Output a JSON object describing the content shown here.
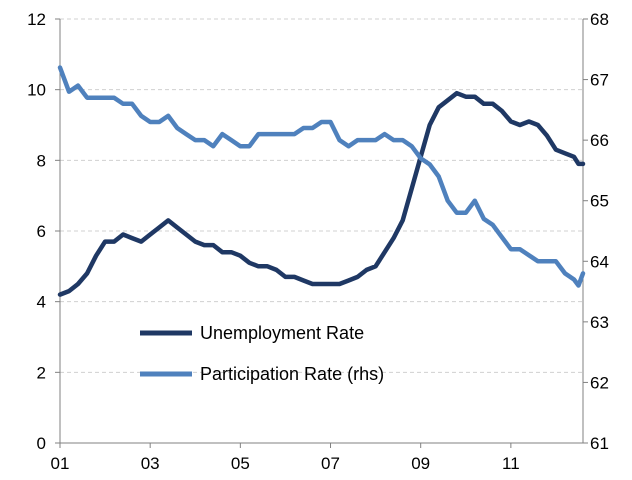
{
  "chart_data": {
    "type": "line",
    "x_tick_labels": [
      "01",
      "03",
      "05",
      "07",
      "09",
      "11"
    ],
    "x_tick_years": [
      2001,
      2003,
      2005,
      2007,
      2009,
      2011
    ],
    "xlim": [
      2001.0,
      2012.6
    ],
    "y_left": {
      "ylim": [
        0,
        12
      ],
      "ticks": [
        0,
        2,
        4,
        6,
        8,
        10,
        12
      ]
    },
    "y_right": {
      "ylim": [
        61,
        68
      ],
      "ticks": [
        61,
        62,
        63,
        64,
        65,
        66,
        67,
        68
      ]
    },
    "grid": {
      "horizontal": true,
      "dashed": true
    },
    "legend": {
      "placement": "lower-center"
    },
    "series": [
      {
        "name": "Unemployment Rate",
        "axis": "left",
        "color": "#1f3864",
        "points": [
          [
            2001.0,
            4.2
          ],
          [
            2001.2,
            4.3
          ],
          [
            2001.4,
            4.5
          ],
          [
            2001.6,
            4.8
          ],
          [
            2001.8,
            5.3
          ],
          [
            2002.0,
            5.7
          ],
          [
            2002.2,
            5.7
          ],
          [
            2002.4,
            5.9
          ],
          [
            2002.6,
            5.8
          ],
          [
            2002.8,
            5.7
          ],
          [
            2003.0,
            5.9
          ],
          [
            2003.2,
            6.1
          ],
          [
            2003.4,
            6.3
          ],
          [
            2003.6,
            6.1
          ],
          [
            2003.8,
            5.9
          ],
          [
            2004.0,
            5.7
          ],
          [
            2004.2,
            5.6
          ],
          [
            2004.4,
            5.6
          ],
          [
            2004.6,
            5.4
          ],
          [
            2004.8,
            5.4
          ],
          [
            2005.0,
            5.3
          ],
          [
            2005.2,
            5.1
          ],
          [
            2005.4,
            5.0
          ],
          [
            2005.6,
            5.0
          ],
          [
            2005.8,
            4.9
          ],
          [
            2006.0,
            4.7
          ],
          [
            2006.2,
            4.7
          ],
          [
            2006.4,
            4.6
          ],
          [
            2006.6,
            4.5
          ],
          [
            2006.8,
            4.5
          ],
          [
            2007.0,
            4.5
          ],
          [
            2007.2,
            4.5
          ],
          [
            2007.4,
            4.6
          ],
          [
            2007.6,
            4.7
          ],
          [
            2007.8,
            4.9
          ],
          [
            2008.0,
            5.0
          ],
          [
            2008.2,
            5.4
          ],
          [
            2008.4,
            5.8
          ],
          [
            2008.6,
            6.3
          ],
          [
            2008.8,
            7.2
          ],
          [
            2009.0,
            8.1
          ],
          [
            2009.2,
            9.0
          ],
          [
            2009.4,
            9.5
          ],
          [
            2009.6,
            9.7
          ],
          [
            2009.8,
            9.9
          ],
          [
            2010.0,
            9.8
          ],
          [
            2010.2,
            9.8
          ],
          [
            2010.4,
            9.6
          ],
          [
            2010.6,
            9.6
          ],
          [
            2010.8,
            9.4
          ],
          [
            2011.0,
            9.1
          ],
          [
            2011.2,
            9.0
          ],
          [
            2011.4,
            9.1
          ],
          [
            2011.6,
            9.0
          ],
          [
            2011.8,
            8.7
          ],
          [
            2012.0,
            8.3
          ],
          [
            2012.2,
            8.2
          ],
          [
            2012.4,
            8.1
          ],
          [
            2012.5,
            7.9
          ],
          [
            2012.6,
            7.9
          ]
        ]
      },
      {
        "name": "Participation Rate (rhs)",
        "axis": "right",
        "color": "#4f81bd",
        "points": [
          [
            2001.0,
            67.2
          ],
          [
            2001.2,
            66.8
          ],
          [
            2001.4,
            66.9
          ],
          [
            2001.6,
            66.7
          ],
          [
            2001.8,
            66.7
          ],
          [
            2002.0,
            66.7
          ],
          [
            2002.2,
            66.7
          ],
          [
            2002.4,
            66.6
          ],
          [
            2002.6,
            66.6
          ],
          [
            2002.8,
            66.4
          ],
          [
            2003.0,
            66.3
          ],
          [
            2003.2,
            66.3
          ],
          [
            2003.4,
            66.4
          ],
          [
            2003.6,
            66.2
          ],
          [
            2003.8,
            66.1
          ],
          [
            2004.0,
            66.0
          ],
          [
            2004.2,
            66.0
          ],
          [
            2004.4,
            65.9
          ],
          [
            2004.6,
            66.1
          ],
          [
            2004.8,
            66.0
          ],
          [
            2005.0,
            65.9
          ],
          [
            2005.2,
            65.9
          ],
          [
            2005.4,
            66.1
          ],
          [
            2005.6,
            66.1
          ],
          [
            2005.8,
            66.1
          ],
          [
            2006.0,
            66.1
          ],
          [
            2006.2,
            66.1
          ],
          [
            2006.4,
            66.2
          ],
          [
            2006.6,
            66.2
          ],
          [
            2006.8,
            66.3
          ],
          [
            2007.0,
            66.3
          ],
          [
            2007.2,
            66.0
          ],
          [
            2007.4,
            65.9
          ],
          [
            2007.6,
            66.0
          ],
          [
            2007.8,
            66.0
          ],
          [
            2008.0,
            66.0
          ],
          [
            2008.2,
            66.1
          ],
          [
            2008.4,
            66.0
          ],
          [
            2008.6,
            66.0
          ],
          [
            2008.8,
            65.9
          ],
          [
            2009.0,
            65.7
          ],
          [
            2009.2,
            65.6
          ],
          [
            2009.4,
            65.4
          ],
          [
            2009.6,
            65.0
          ],
          [
            2009.8,
            64.8
          ],
          [
            2010.0,
            64.8
          ],
          [
            2010.2,
            65.0
          ],
          [
            2010.4,
            64.7
          ],
          [
            2010.6,
            64.6
          ],
          [
            2010.8,
            64.4
          ],
          [
            2011.0,
            64.2
          ],
          [
            2011.2,
            64.2
          ],
          [
            2011.4,
            64.1
          ],
          [
            2011.6,
            64.0
          ],
          [
            2011.8,
            64.0
          ],
          [
            2012.0,
            64.0
          ],
          [
            2012.2,
            63.8
          ],
          [
            2012.4,
            63.7
          ],
          [
            2012.5,
            63.6
          ],
          [
            2012.6,
            63.8
          ]
        ]
      }
    ]
  }
}
